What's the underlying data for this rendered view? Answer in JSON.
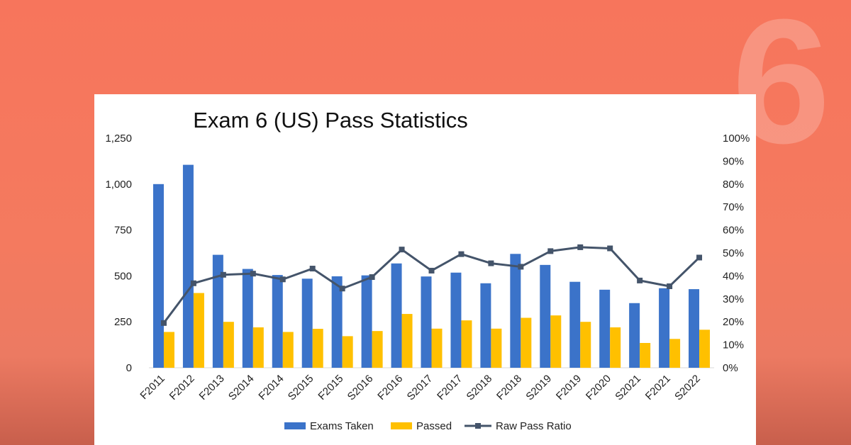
{
  "background_badge": "6",
  "colors": {
    "background": "#f7755c",
    "exams_taken": "#3b73c9",
    "passed": "#ffc000",
    "ratio_line": "#44546a"
  },
  "chart_data": {
    "type": "bar",
    "title": "Exam 6 (US) Pass Statistics",
    "categories": [
      "F2011",
      "F2012",
      "F2013",
      "S2014",
      "F2014",
      "S2015",
      "F2015",
      "S2016",
      "F2016",
      "S2017",
      "F2017",
      "S2018",
      "F2018",
      "S2019",
      "F2019",
      "F2020",
      "S2021",
      "F2021",
      "S2022"
    ],
    "series": [
      {
        "name": "Exams Taken",
        "type": "bar",
        "axis": "left",
        "values": [
          1000,
          1105,
          615,
          538,
          505,
          485,
          498,
          503,
          568,
          497,
          518,
          460,
          620,
          560,
          468,
          425,
          352,
          433,
          428
        ]
      },
      {
        "name": "Passed",
        "type": "bar",
        "axis": "left",
        "values": [
          195,
          407,
          250,
          220,
          195,
          212,
          172,
          200,
          293,
          213,
          258,
          213,
          272,
          285,
          250,
          220,
          135,
          157,
          207
        ]
      },
      {
        "name": "Raw Pass Ratio",
        "type": "line",
        "axis": "right",
        "marker": "square",
        "values": [
          0.195,
          0.368,
          0.405,
          0.41,
          0.385,
          0.432,
          0.345,
          0.395,
          0.515,
          0.423,
          0.495,
          0.455,
          0.44,
          0.508,
          0.525,
          0.52,
          0.38,
          0.355,
          0.48
        ]
      }
    ],
    "y_left": {
      "ylim": [
        0,
        1250
      ],
      "ticks": [
        0,
        250,
        500,
        750,
        1000,
        1250
      ],
      "tick_labels": [
        "0",
        "250",
        "500",
        "750",
        "1,000",
        "1,250"
      ]
    },
    "y_right": {
      "ylim": [
        0,
        1
      ],
      "ticks": [
        0,
        0.1,
        0.2,
        0.3,
        0.4,
        0.5,
        0.6,
        0.7,
        0.8,
        0.9,
        1.0
      ],
      "tick_labels": [
        "0%",
        "10%",
        "20%",
        "30%",
        "40%",
        "50%",
        "60%",
        "70%",
        "80%",
        "90%",
        "100%"
      ]
    },
    "grid": false,
    "legend_position": "bottom",
    "legend": [
      "Exams Taken",
      "Passed",
      "Raw Pass Ratio"
    ]
  }
}
